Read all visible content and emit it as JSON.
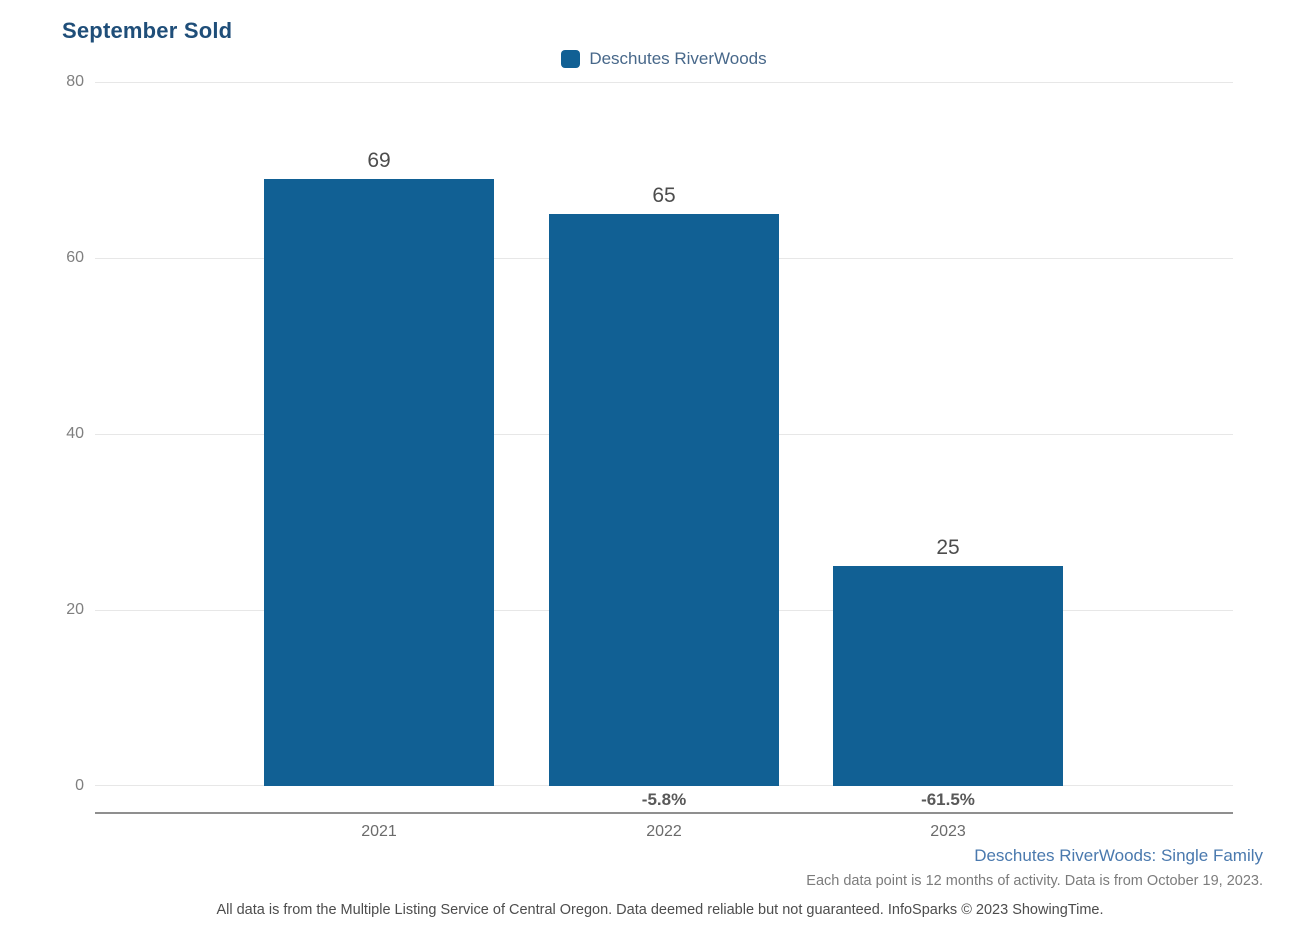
{
  "chart": {
    "title": "September Sold",
    "legend": {
      "label": "Deschutes RiverWoods"
    },
    "y_axis": {
      "ticks": [
        "80",
        "60",
        "40",
        "20",
        "0"
      ]
    },
    "bars": [
      {
        "year": "2021",
        "value_label": "69",
        "pct_label": ""
      },
      {
        "year": "2022",
        "value_label": "65",
        "pct_label": "-5.8%"
      },
      {
        "year": "2023",
        "value_label": "25",
        "pct_label": "-61.5%"
      }
    ]
  },
  "footer": {
    "series_caption": "Deschutes RiverWoods: Single Family",
    "note": "Each data point is 12 months of activity. Data is from October 19, 2023.",
    "disclaimer": "All data is from the Multiple Listing Service of Central Oregon. Data deemed reliable but not guaranteed. InfoSparks © 2023 ShowingTime."
  },
  "chart_data": {
    "type": "bar",
    "categories": [
      "2021",
      "2022",
      "2023"
    ],
    "values": [
      69,
      65,
      25
    ],
    "series": [
      {
        "name": "Deschutes RiverWoods",
        "values": [
          69,
          65,
          25
        ]
      }
    ],
    "data_labels": [
      "69",
      "65",
      "25"
    ],
    "pct_change_labels": [
      null,
      "-5.8%",
      "-61.5%"
    ],
    "title": "September Sold",
    "xlabel": "",
    "ylabel": "",
    "ylim": [
      0,
      80
    ],
    "yticks": [
      0,
      20,
      40,
      60,
      80
    ],
    "grid": true,
    "legend_position": "top-center",
    "colors": {
      "bar": "#116094",
      "title": "#1F4E79",
      "legend_text": "#48688A",
      "tick_text": "#7F7F7F",
      "value_label": "#4D4D4D",
      "pct_label": "#595959",
      "gridline": "#E7E7E7",
      "axis_line": "#8F8F8F",
      "caption_link": "#4A79AE",
      "note_text": "#7C7C7C"
    }
  }
}
